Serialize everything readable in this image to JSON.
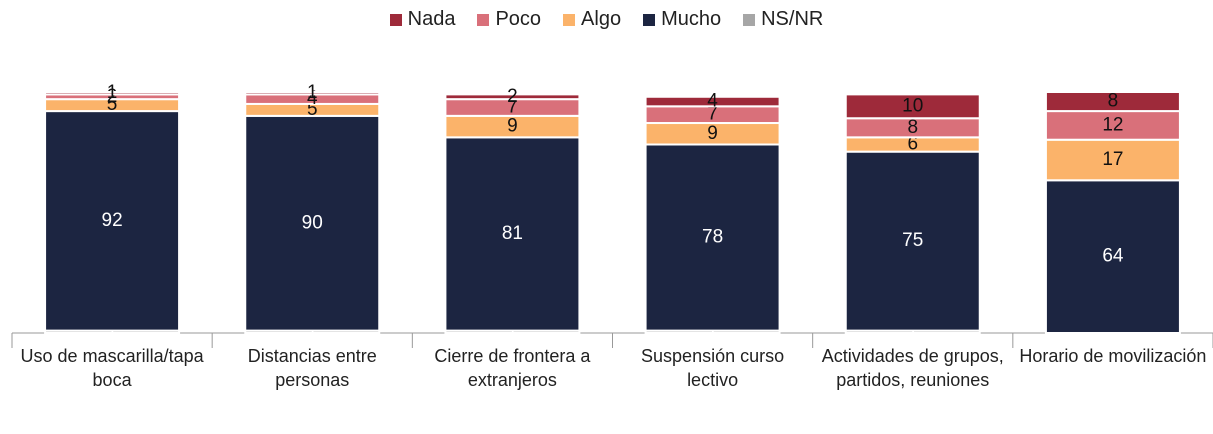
{
  "chart_data": {
    "type": "bar",
    "stacked": true,
    "categories": [
      "Uso de mascarilla/tapa boca",
      "Distancias entre personas",
      "Cierre de frontera a extranjeros",
      "Suspensión curso lectivo",
      "Actividades de grupos, partidos, reuniones",
      "Horario de movilización"
    ],
    "series": [
      {
        "name": "Nada",
        "color": "#9e2a3a",
        "values": [
          1,
          1,
          2,
          4,
          10,
          8
        ]
      },
      {
        "name": "Poco",
        "color": "#d9707a",
        "values": [
          2,
          4,
          7,
          7,
          8,
          12
        ]
      },
      {
        "name": "Algo",
        "color": "#fbb36a",
        "values": [
          5,
          5,
          9,
          9,
          6,
          17
        ]
      },
      {
        "name": "Mucho",
        "color": "#1c2541",
        "values": [
          92,
          90,
          81,
          78,
          75,
          64
        ]
      },
      {
        "name": "NS/NR",
        "color": "#a6a6a6",
        "values": [
          1,
          1,
          1,
          1,
          1,
          null
        ]
      }
    ],
    "legend": "top"
  }
}
